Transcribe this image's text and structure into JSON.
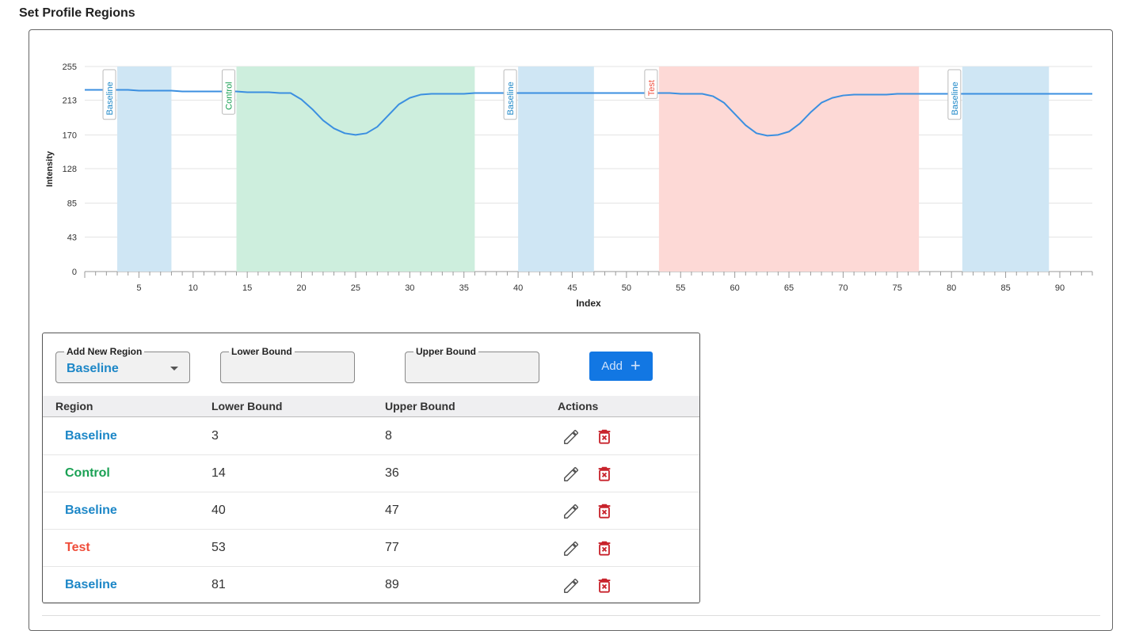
{
  "page_title": "Set Profile Regions",
  "colors": {
    "baseline": "#1d87c7",
    "control": "#1aa154",
    "test": "#ef4d3a",
    "baseline_fill": "#cfe6f4",
    "control_fill": "#cdeedd",
    "test_fill": "#fdd9d6",
    "line": "#3b8fe0",
    "accent": "#1277e3"
  },
  "chart_data": {
    "type": "line",
    "xlabel": "Index",
    "ylabel": "Intensity",
    "xlim": [
      0,
      93
    ],
    "ylim": [
      0,
      255
    ],
    "x_ticks": [
      5,
      10,
      15,
      20,
      25,
      30,
      35,
      40,
      45,
      50,
      55,
      60,
      65,
      70,
      75,
      80,
      85,
      90
    ],
    "y_ticks": [
      "0",
      "43",
      "85",
      "128",
      "170",
      "213",
      "255"
    ],
    "grid": "horizontal",
    "regions": [
      {
        "label": "Baseline",
        "kind": "baseline",
        "lower": 3,
        "upper": 8
      },
      {
        "label": "Control",
        "kind": "control",
        "lower": 14,
        "upper": 36
      },
      {
        "label": "Baseline",
        "kind": "baseline",
        "lower": 40,
        "upper": 47
      },
      {
        "label": "Test",
        "kind": "test",
        "lower": 53,
        "upper": 77
      },
      {
        "label": "Baseline",
        "kind": "baseline",
        "lower": 81,
        "upper": 89
      }
    ],
    "series": [
      {
        "x": [
          0,
          1,
          2,
          3,
          4,
          5,
          6,
          7,
          8,
          9,
          10,
          11,
          12,
          13,
          14,
          15,
          16,
          17,
          18,
          19,
          20,
          21,
          22,
          23,
          24,
          25,
          26,
          27,
          28,
          29,
          30,
          31,
          32,
          33,
          34,
          35,
          36,
          37,
          38,
          39,
          40,
          41,
          42,
          43,
          44,
          45,
          46,
          47,
          48,
          49,
          50,
          51,
          52,
          53,
          54,
          55,
          56,
          57,
          58,
          59,
          60,
          61,
          62,
          63,
          64,
          65,
          66,
          67,
          68,
          69,
          70,
          71,
          72,
          73,
          74,
          75,
          76,
          77,
          78,
          79,
          80,
          81,
          82,
          83,
          84,
          85,
          86,
          87,
          88,
          89,
          90,
          91,
          92,
          93
        ],
        "values": [
          226,
          226,
          226,
          226,
          226,
          225,
          225,
          225,
          225,
          224,
          224,
          224,
          224,
          224,
          224,
          223,
          223,
          223,
          222,
          222,
          214,
          202,
          188,
          178,
          172,
          170,
          172,
          180,
          194,
          208,
          216,
          220,
          221,
          221,
          221,
          221,
          222,
          222,
          222,
          222,
          222,
          222,
          222,
          222,
          222,
          222,
          222,
          222,
          222,
          222,
          222,
          222,
          222,
          222,
          222,
          221,
          221,
          221,
          218,
          210,
          196,
          182,
          172,
          169,
          170,
          174,
          184,
          198,
          210,
          216,
          219,
          220,
          220,
          220,
          220,
          221,
          221,
          221,
          221,
          221,
          221,
          221,
          221,
          221,
          221,
          221,
          221,
          221,
          221,
          221,
          221,
          221,
          221,
          221
        ]
      }
    ]
  },
  "form": {
    "add_new_region_label": "Add New Region",
    "add_new_region_value": "Baseline",
    "lower_bound_label": "Lower Bound",
    "upper_bound_label": "Upper Bound",
    "lower_bound_value": "",
    "upper_bound_value": "",
    "add_label": "Add",
    "add_icon": "plus-icon"
  },
  "table": {
    "headers": {
      "region": "Region",
      "lower": "Lower Bound",
      "upper": "Upper Bound",
      "actions": "Actions"
    },
    "rows": [
      {
        "region": "Baseline",
        "kind": "baseline",
        "lower": "3",
        "upper": "8"
      },
      {
        "region": "Control",
        "kind": "control",
        "lower": "14",
        "upper": "36"
      },
      {
        "region": "Baseline",
        "kind": "baseline",
        "lower": "40",
        "upper": "47"
      },
      {
        "region": "Test",
        "kind": "test",
        "lower": "53",
        "upper": "77"
      },
      {
        "region": "Baseline",
        "kind": "baseline",
        "lower": "81",
        "upper": "89"
      }
    ],
    "edit_icon": "pencil-icon",
    "delete_icon": "trash-icon"
  }
}
